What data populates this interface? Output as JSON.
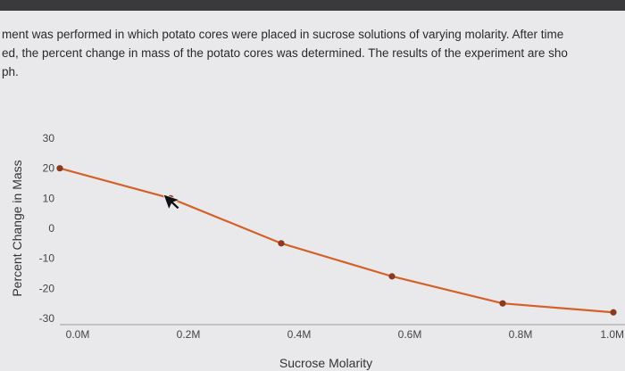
{
  "question": {
    "line1": "ment was performed in which potato cores were placed in sucrose solutions of varying molarity. After time",
    "line2": "ed, the percent change in mass of the potato cores was determined. The results of the experiment are sho",
    "line3": "ph."
  },
  "chart_data": {
    "type": "line",
    "title": "",
    "xlabel": "Sucrose Molarity",
    "ylabel": "Percent Change in Mass",
    "x_tick_labels": [
      "0.0M",
      "0.2M",
      "0.4M",
      "0.6M",
      "0.8M",
      "1.0M"
    ],
    "y_ticks": [
      30,
      20,
      10,
      0,
      -10,
      -20,
      -30
    ],
    "ylim": [
      -30,
      30
    ],
    "series": [
      {
        "x": [
          0.0,
          0.2,
          0.4,
          0.6,
          0.8,
          1.0
        ],
        "y": [
          20,
          10,
          -5,
          -16,
          -25,
          -28
        ],
        "color": "#d4602a"
      }
    ],
    "grid": false,
    "legend": "none"
  }
}
